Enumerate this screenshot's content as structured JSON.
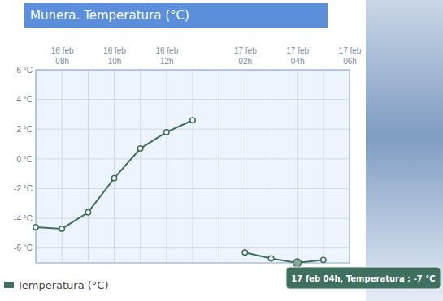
{
  "chart_data": {
    "type": "line",
    "title": "Munera. Temperatura (°C)",
    "categories": [
      null,
      "16 feb 08h",
      null,
      "16 feb 10h",
      null,
      "16 feb 12h",
      null,
      null,
      "17 feb 02h",
      null,
      "17 feb 04h",
      null,
      "17 feb 06h"
    ],
    "series": [
      {
        "name": "Temperatura (°C)",
        "color": "#3f6f5e",
        "marker": "circle",
        "values": [
          -4.6,
          -4.7,
          -3.6,
          -1.3,
          0.7,
          1.8,
          2.6,
          null,
          -6.3,
          -6.7,
          -7,
          -6.8,
          null
        ]
      }
    ],
    "ylim": [
      -7,
      6
    ],
    "yticks": [
      {
        "value": 6,
        "label": "6 °C"
      },
      {
        "value": 4,
        "label": "4 °C"
      },
      {
        "value": 2,
        "label": "2 °C"
      },
      {
        "value": 0,
        "label": "0 °C"
      },
      {
        "value": -2,
        "label": "-2 °C"
      },
      {
        "value": -4,
        "label": "-4 °C"
      },
      {
        "value": -6,
        "label": "-6 °C"
      }
    ],
    "grid": true,
    "legend": "bottom-left",
    "annotation": "17 feb 04h, Temperatura : -7 °C"
  }
}
